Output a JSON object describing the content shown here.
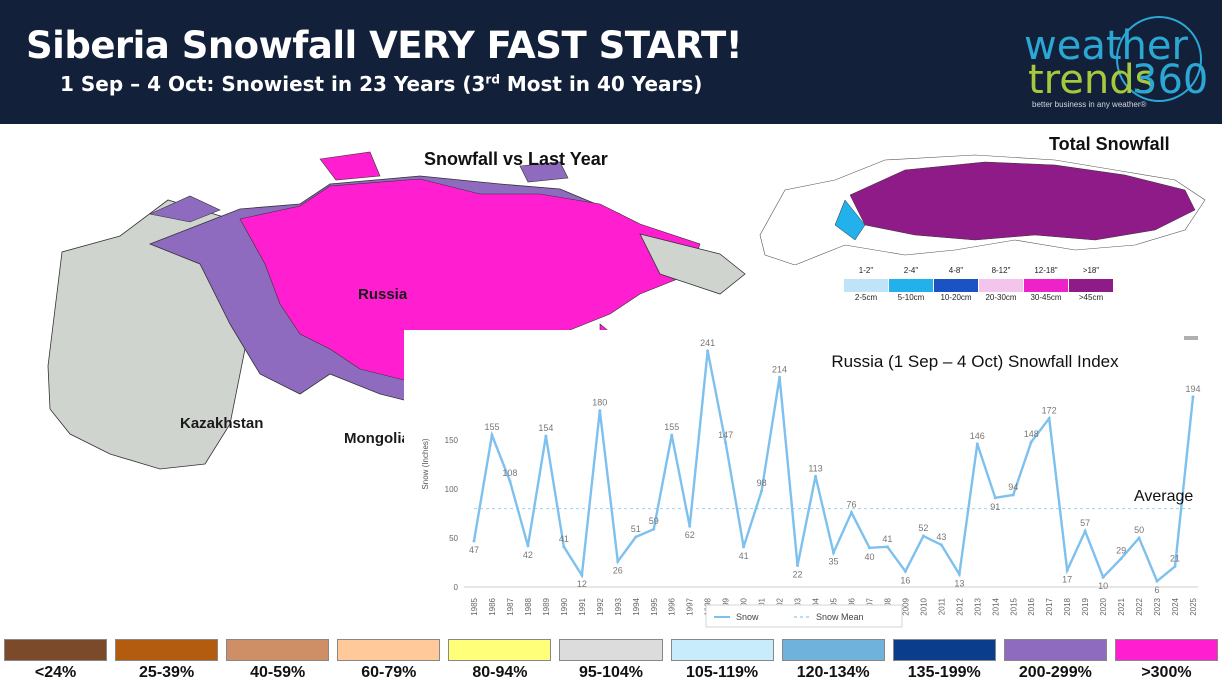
{
  "header": {
    "title": "Siberia Snowfall VERY FAST START!",
    "subtitle_pre": "1 Sep – 4 Oct: Snowiest in 23 Years (3",
    "subtitle_sup": "rd",
    "subtitle_post": " Most in 40 Years)"
  },
  "logo": {
    "word1": "weather",
    "word2": "trends",
    "word3": "360",
    "tagline": "better business in any weather®"
  },
  "maps": {
    "left_title": "Snowfall vs Last Year",
    "right_title": "Total Snowfall",
    "labels": {
      "russia": "Russia",
      "kazakhstan": "Kazakhstan",
      "mongolia": "Mongolia"
    }
  },
  "total_legend": [
    {
      "inch": "1-2\"",
      "cm": "2-5cm",
      "color": "#bfe3f7"
    },
    {
      "inch": "2-4\"",
      "cm": "5-10cm",
      "color": "#22b1ea"
    },
    {
      "inch": "4-8\"",
      "cm": "10-20cm",
      "color": "#1b53c4"
    },
    {
      "inch": "8-12\"",
      "cm": "20-30cm",
      "color": "#f3c4ec"
    },
    {
      "inch": "12-18\"",
      "cm": "30-45cm",
      "color": "#ee22c9"
    },
    {
      "inch": ">18\"",
      "cm": ">45cm",
      "color": "#8e1b88"
    }
  ],
  "pct_legend": [
    {
      "label": "<24%",
      "color": "#7b4a2a"
    },
    {
      "label": "25-39%",
      "color": "#b35c10"
    },
    {
      "label": "40-59%",
      "color": "#cf8f66"
    },
    {
      "label": "60-79%",
      "color": "#ffc99a"
    },
    {
      "label": "80-94%",
      "color": "#ffff7a"
    },
    {
      "label": "95-104%",
      "color": "#dcdcdc"
    },
    {
      "label": "105-119%",
      "color": "#c8ecfb"
    },
    {
      "label": "120-134%",
      "color": "#6fb3dd"
    },
    {
      "label": "135-199%",
      "color": "#0a3e8c"
    },
    {
      "label": "200-299%",
      "color": "#8e6bbf"
    },
    {
      "label": ">300%",
      "color": "#ff1fd0"
    }
  ],
  "colors": {
    "header_bg": "#13203a",
    "series_line": "#7ec0ee",
    "mean_line": "#9fd3f2",
    "russia_grey": "#cfd4cf",
    "russia_purple": "#8e6bbf",
    "russia_magenta": "#ff1fd0"
  },
  "chart_data": {
    "type": "line",
    "title": "Russia (1 Sep – 4 Oct) Snowfall Index",
    "ylabel": "Snow (Inches)",
    "xlabel": "",
    "ylim": [
      0,
      250
    ],
    "yticks": [
      0,
      50,
      100,
      150
    ],
    "x": [
      "1985",
      "1986",
      "1987",
      "1988",
      "1989",
      "1990",
      "1991",
      "1992",
      "1993",
      "1994",
      "1995",
      "1996",
      "1997",
      "1998",
      "1999",
      "2000",
      "2001",
      "2002",
      "2003",
      "2004",
      "2005",
      "2006",
      "2007",
      "2008",
      "2009",
      "2010",
      "2011",
      "2012",
      "2013",
      "2014",
      "2015",
      "2016",
      "2017",
      "2018",
      "2019",
      "2020",
      "2021",
      "2022",
      "2023",
      "2024",
      "2025"
    ],
    "series": [
      {
        "name": "Snow",
        "values": [
          47,
          155,
          108,
          42,
          154,
          41,
          12,
          180,
          26,
          51,
          59,
          155,
          62,
          241,
          147,
          41,
          98,
          214,
          22,
          113,
          35,
          76,
          40,
          41,
          16,
          52,
          43,
          13,
          146,
          91,
          94,
          148,
          172,
          17,
          57,
          10,
          29,
          50,
          6,
          21,
          194
        ]
      },
      {
        "name": "Snow Mean",
        "values": [
          80,
          80,
          80,
          80,
          80,
          80,
          80,
          80,
          80,
          80,
          80,
          80,
          80,
          80,
          80,
          80,
          80,
          80,
          80,
          80,
          80,
          80,
          80,
          80,
          80,
          80,
          80,
          80,
          80,
          80,
          80,
          80,
          80,
          80,
          80,
          80,
          80,
          80,
          80,
          80,
          80
        ]
      }
    ],
    "legend_position": "bottom",
    "annotation": "Average",
    "grid": false
  }
}
